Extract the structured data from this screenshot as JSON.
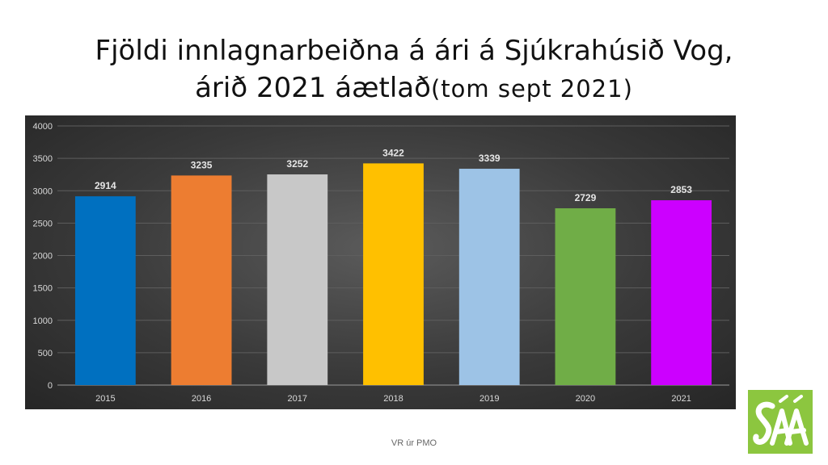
{
  "title": {
    "line1": "Fjöldi innlagnarbeiðna á ári á Sjúkrahúsið Vog,",
    "line2_main": "árið 2021 áætlað",
    "line2_sub": "(tom sept 2021)"
  },
  "chart_data": {
    "type": "bar",
    "categories": [
      "2015",
      "2016",
      "2017",
      "2018",
      "2019",
      "2020",
      "2021"
    ],
    "values": [
      2914,
      3235,
      3252,
      3422,
      3339,
      2729,
      2853
    ],
    "colors": [
      "#0070c0",
      "#ed7d31",
      "#c8c8c8",
      "#ffc000",
      "#9dc3e6",
      "#70ad47",
      "#cc00ff"
    ],
    "yticks": [
      "0",
      "500",
      "1000",
      "1500",
      "2000",
      "2500",
      "3000",
      "3500",
      "4000"
    ],
    "ylim": [
      0,
      4000
    ],
    "grid": true,
    "data_labels": true
  },
  "footer": {
    "text": "VR úr PMO"
  },
  "logo": {
    "text": "SÁÁ",
    "color": "#8cc63f"
  }
}
